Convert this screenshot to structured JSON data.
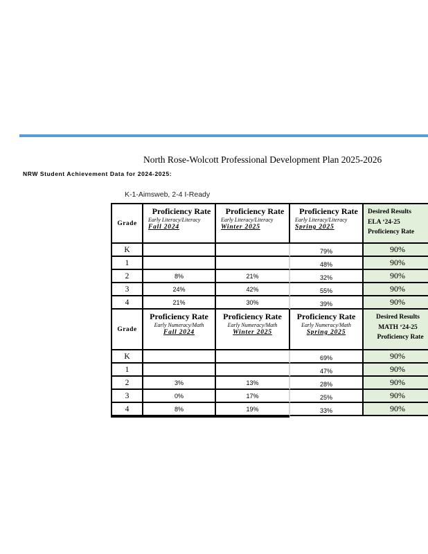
{
  "page": {
    "title": "North Rose-Wolcott Professional Development Plan 2025-2026",
    "subtitle": "NRW Student Achievement Data for 2024-2025:",
    "table_caption": "K-1-Aimsweb, 2-4 I-Ready"
  },
  "colors": {
    "accent_line": "#5b9bd5",
    "desired_results_bg": "#e2efda",
    "grid_border": "#000000",
    "light_divider": "#d9d9d9"
  },
  "ela": {
    "grade_header": "Grade",
    "periods": [
      {
        "title": "Proficiency Rate",
        "measure": "Early Literacy/Literacy",
        "term": "Fall 2024"
      },
      {
        "title": "Proficiency Rate",
        "measure": "Early Literacy/Literacy",
        "term": "Winter 2025"
      },
      {
        "title": "Proficiency Rate",
        "measure": "Early Literacy/Literacy",
        "term": "Spring 2025"
      }
    ],
    "desired": {
      "line1": "Desired Results",
      "line2": "ELA ‘24-25",
      "label_left": "Proficiency",
      "label_right": "Rate"
    },
    "rows": [
      {
        "grade": "K",
        "fall": "",
        "winter": "",
        "spring": "79%",
        "desired": "90%"
      },
      {
        "grade": "1",
        "fall": "",
        "winter": "",
        "spring": "48%",
        "desired": "90%"
      },
      {
        "grade": "2",
        "fall": "8%",
        "winter": "21%",
        "spring": "32%",
        "desired": "90%"
      },
      {
        "grade": "3",
        "fall": "24%",
        "winter": "42%",
        "spring": "55%",
        "desired": "90%"
      },
      {
        "grade": "4",
        "fall": "21%",
        "winter": "30%",
        "spring": "39%",
        "desired": "90%"
      }
    ]
  },
  "math": {
    "grade_header": "Grade",
    "periods": [
      {
        "title": "Proficiency Rate",
        "measure": "Early Numeracy/Math",
        "term": "Fall 2024"
      },
      {
        "title": "Proficiency Rate",
        "measure": "Early Numeracy/Math",
        "term": "Winter 2025"
      },
      {
        "title": "Proficiency Rate",
        "measure": "Early Numeracy/Math",
        "term": "Spring 2025"
      }
    ],
    "desired": {
      "line1": "Desired Results",
      "line2": "MATH ‘24-25",
      "label_left": "Proficiency",
      "label_right": "Rate"
    },
    "rows": [
      {
        "grade": "K",
        "fall": "",
        "winter": "",
        "spring": "69%",
        "desired": "90%"
      },
      {
        "grade": "1",
        "fall": "",
        "winter": "",
        "spring": "47%",
        "desired": "90%"
      },
      {
        "grade": "2",
        "fall": "3%",
        "winter": "13%",
        "spring": "28%",
        "desired": "90%"
      },
      {
        "grade": "3",
        "fall": "0%",
        "winter": "17%",
        "spring": "25%",
        "desired": "90%"
      },
      {
        "grade": "4",
        "fall": "8%",
        "winter": "19%",
        "spring": "33%",
        "desired": "90%"
      }
    ]
  }
}
